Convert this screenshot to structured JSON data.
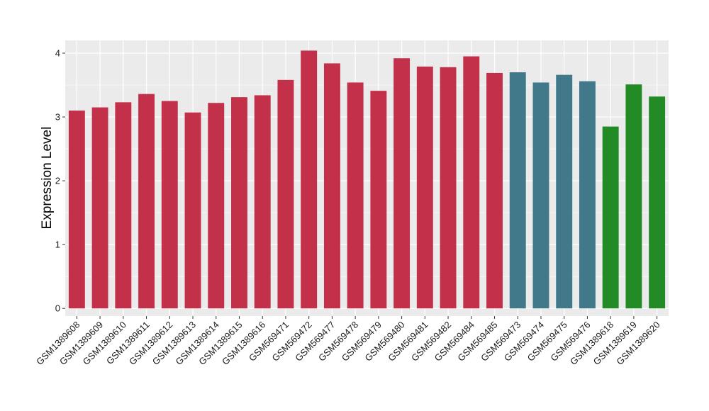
{
  "chart_data": {
    "type": "bar",
    "xlabel": "",
    "ylabel": "Expression Level",
    "ylim": [
      -0.12,
      4.2
    ],
    "yticks": [
      0,
      1,
      2,
      3,
      4
    ],
    "grid": true,
    "legend": "none",
    "categories": [
      "GSM1389608",
      "GSM1389609",
      "GSM1389610",
      "GSM1389611",
      "GSM1389612",
      "GSM1389613",
      "GSM1389614",
      "GSM1389615",
      "GSM1389616",
      "GSM569471",
      "GSM569472",
      "GSM569477",
      "GSM569478",
      "GSM569479",
      "GSM569480",
      "GSM569481",
      "GSM569482",
      "GSM569484",
      "GSM569485",
      "GSM569473",
      "GSM569474",
      "GSM569475",
      "GSM569476",
      "GSM1389618",
      "GSM1389619",
      "GSM1389620"
    ],
    "values": [
      3.1,
      3.15,
      3.23,
      3.36,
      3.25,
      3.07,
      3.22,
      3.31,
      3.34,
      3.58,
      4.04,
      3.84,
      3.54,
      3.41,
      3.92,
      3.79,
      3.78,
      3.95,
      3.69,
      3.7,
      3.54,
      3.66,
      3.56,
      2.85,
      3.51,
      3.32
    ],
    "groups": [
      0,
      0,
      0,
      0,
      0,
      0,
      0,
      0,
      0,
      0,
      0,
      0,
      0,
      0,
      0,
      0,
      0,
      0,
      0,
      1,
      1,
      1,
      1,
      2,
      2,
      2
    ],
    "colors": [
      "#c3304a",
      "#41788a",
      "#238b26"
    ],
    "panel_background": "#ebebeb",
    "grid_color": "#ffffff"
  }
}
